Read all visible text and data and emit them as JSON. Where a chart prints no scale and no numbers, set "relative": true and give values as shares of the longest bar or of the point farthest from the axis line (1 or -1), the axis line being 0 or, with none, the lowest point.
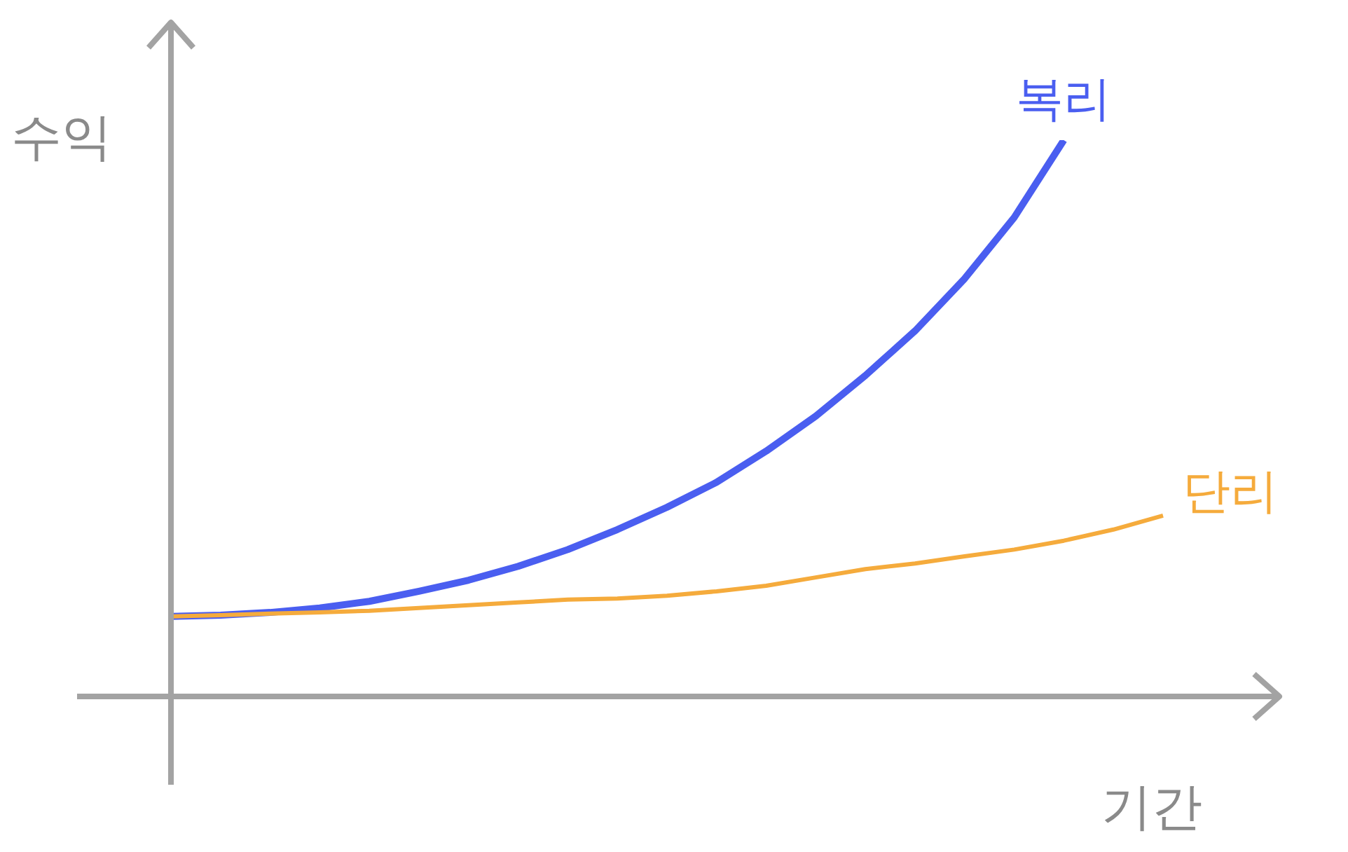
{
  "chart_data": {
    "type": "line",
    "relative": true,
    "xlabel": "기간",
    "ylabel": "수익",
    "categories": [
      null,
      null,
      null,
      null,
      null,
      null,
      null,
      null,
      null,
      null,
      null,
      null,
      null,
      null,
      null,
      null,
      null,
      null,
      null,
      null,
      null
    ],
    "legend": false,
    "grid": false,
    "marker": "none",
    "series": [
      {
        "name": "복리",
        "color": "#4a5ef0",
        "values": [
          0.144,
          0.146,
          0.151,
          0.159,
          0.171,
          0.189,
          0.209,
          0.234,
          0.264,
          0.3,
          0.34,
          0.385,
          0.441,
          0.504,
          0.577,
          0.657,
          0.751,
          0.861,
          1,
          null,
          null
        ]
      },
      {
        "name": "단리",
        "color": "#f5ab3c",
        "values": [
          0.144,
          0.146,
          0.149,
          0.151,
          0.154,
          0.159,
          0.164,
          0.169,
          0.174,
          0.176,
          0.181,
          0.189,
          0.199,
          0.214,
          0.229,
          0.239,
          0.252,
          0.264,
          0.28,
          0.3,
          0.325
        ]
      }
    ]
  }
}
